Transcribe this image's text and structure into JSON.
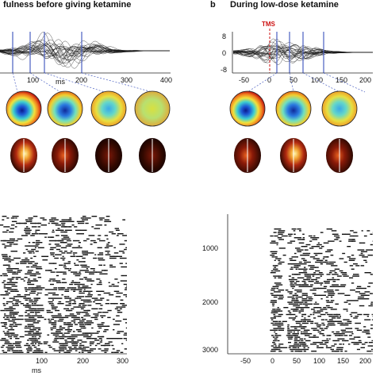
{
  "panel_a": {
    "title": "fulness before giving  ketamine",
    "waveform_ticks": [
      "100",
      "200",
      "300",
      "400"
    ],
    "waveform_unit": "ms",
    "raster_ticks": [
      "100",
      "200",
      "300"
    ],
    "raster_unit": "ms"
  },
  "panel_b": {
    "letter": "b",
    "title": "During low-dose ketamine",
    "marker": "TMS",
    "waveform_y_ticks": [
      "8",
      "0",
      "-8"
    ],
    "waveform_x_ticks": [
      "-50",
      "0",
      "50",
      "100",
      "150",
      "200"
    ],
    "raster_y_ticks": [
      "1000",
      "2000",
      "3000"
    ],
    "raster_x_ticks": [
      "-50",
      "0",
      "50",
      "100",
      "150",
      "200"
    ]
  },
  "colors": {
    "trace": "#1a1a1a",
    "marker_line": "#4a5fc1",
    "tms": "#cc1111"
  }
}
